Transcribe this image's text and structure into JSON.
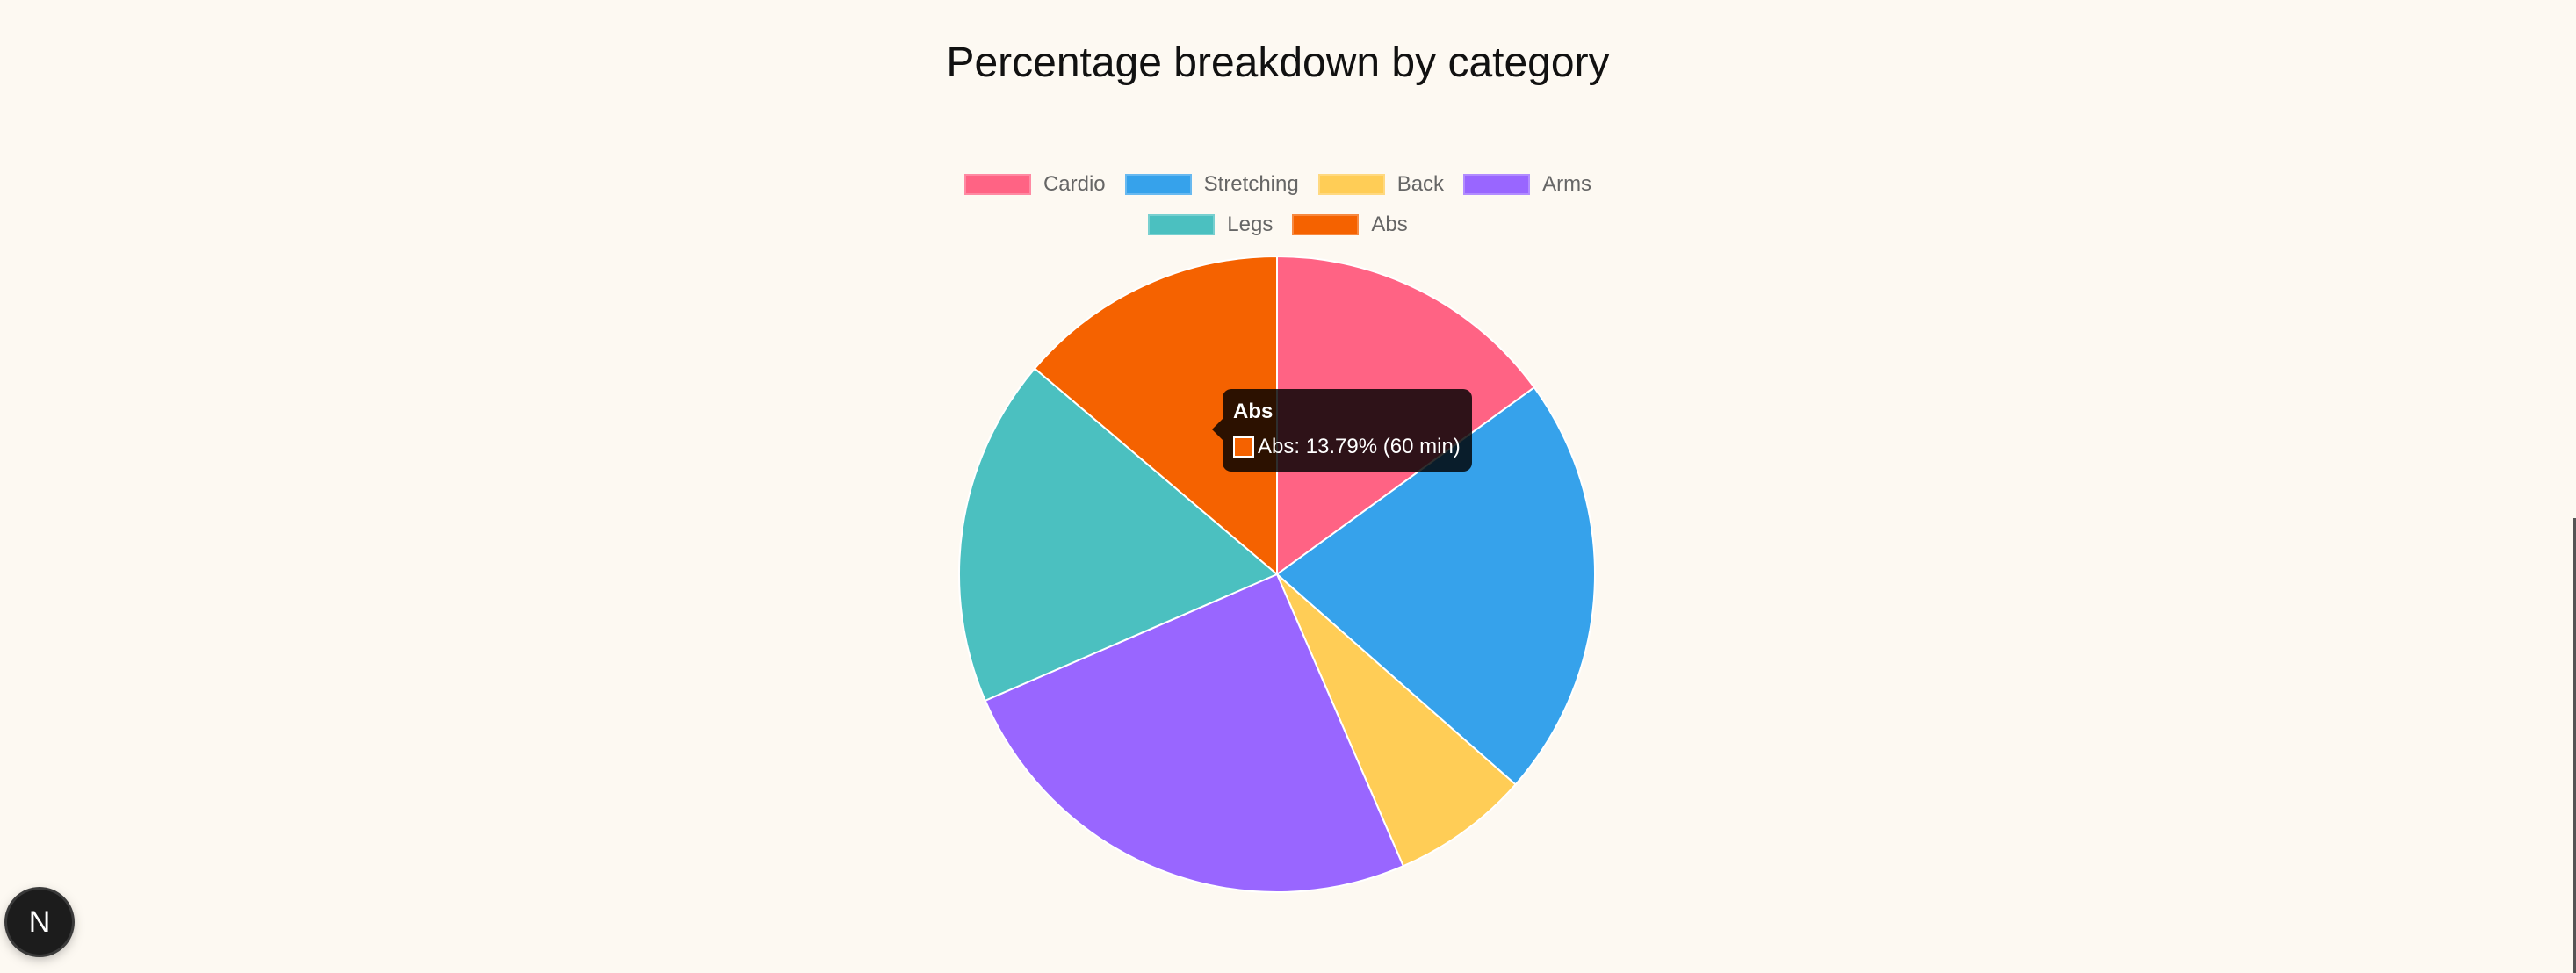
{
  "chart_data": {
    "type": "pie",
    "title": "Percentage breakdown by category",
    "categories": [
      "Cardio",
      "Stretching",
      "Back",
      "Arms",
      "Legs",
      "Abs"
    ],
    "values": [
      15.0,
      21.5,
      7.0,
      25.0,
      17.71,
      13.79
    ],
    "colors": [
      "#ff6384",
      "#36a2eb",
      "#ffcd56",
      "#9966ff",
      "#4bc0c0",
      "#f56200"
    ],
    "legend_position": "top",
    "tooltip": {
      "title": "Abs",
      "label": "Abs: 13.79% (60 min)",
      "color": "#f56200"
    }
  },
  "badge": {
    "letter": "N"
  }
}
